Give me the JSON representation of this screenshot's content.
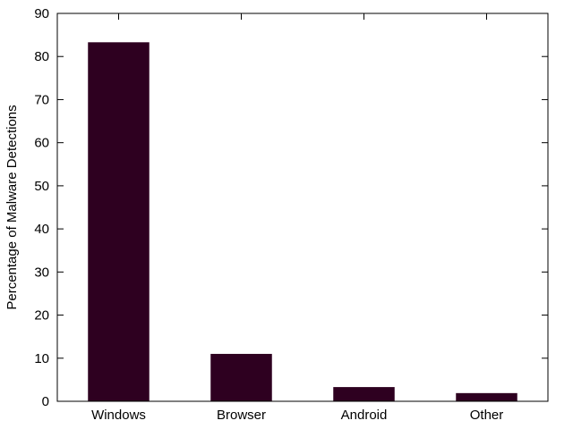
{
  "chart_data": {
    "type": "bar",
    "categories": [
      "Windows",
      "Browser",
      "Android",
      "Other"
    ],
    "values": [
      83.3,
      11,
      3.3,
      1.9
    ],
    "ylabel": "Percentage of Malware Detections",
    "ylim": [
      0,
      90
    ],
    "yticks": [
      0,
      10,
      20,
      30,
      40,
      50,
      60,
      70,
      80,
      90
    ],
    "bar_color": "#2e0020",
    "grid": false,
    "legend": "none"
  }
}
